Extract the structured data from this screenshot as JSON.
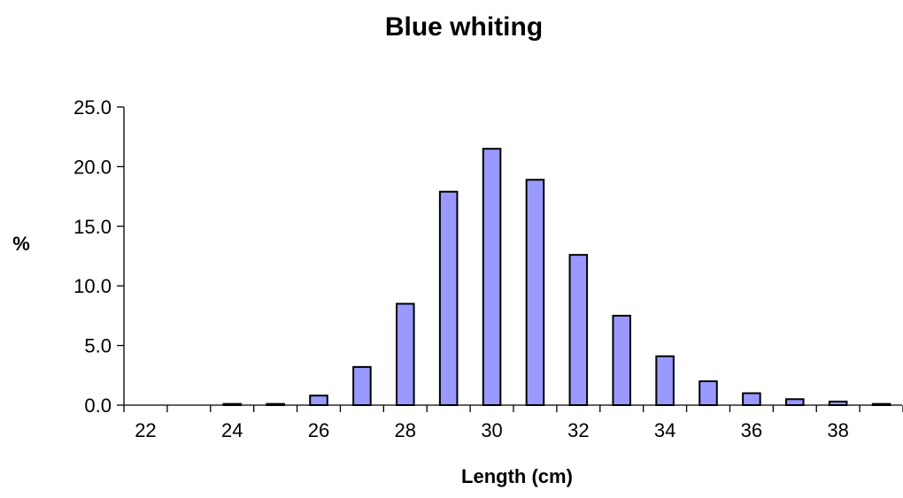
{
  "chart_data": {
    "type": "bar",
    "title": "Blue whiting",
    "xlabel": "Length (cm)",
    "ylabel": "%",
    "categories": [
      22,
      23,
      24,
      25,
      26,
      27,
      28,
      29,
      30,
      31,
      32,
      33,
      34,
      35,
      36,
      37,
      38,
      39
    ],
    "x_tick_labels": [
      "22",
      "24",
      "26",
      "28",
      "30",
      "32",
      "34",
      "36",
      "38"
    ],
    "values": [
      0.0,
      0.0,
      0.1,
      0.1,
      0.8,
      3.2,
      8.5,
      17.9,
      21.5,
      18.9,
      12.6,
      7.5,
      4.1,
      2.0,
      1.0,
      0.5,
      0.3,
      0.1
    ],
    "ylim": [
      0,
      25
    ],
    "y_ticks": [
      "0.0",
      "5.0",
      "10.0",
      "15.0",
      "20.0",
      "25.0"
    ],
    "bar_color": "#9999ff",
    "grid": false,
    "legend": false
  }
}
